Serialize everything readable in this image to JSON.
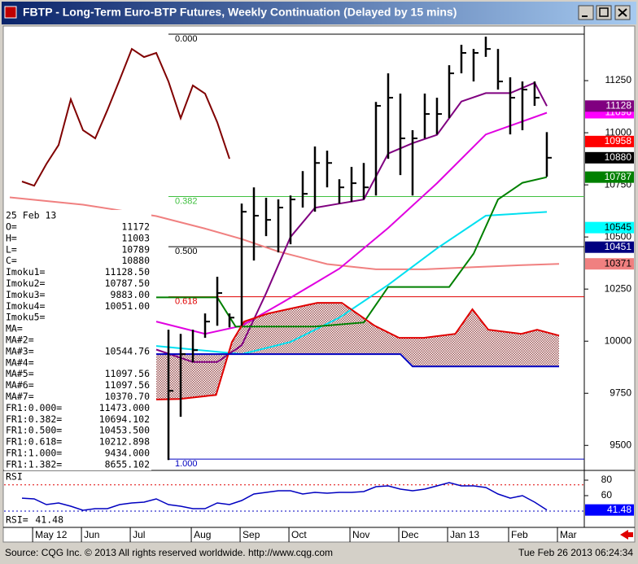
{
  "chart_data": {
    "type": "ohlc",
    "title": "FBTP - Long-Term Euro-BTP Futures, Weekly Continuation (Delayed by 15 mins)",
    "xlim": [
      -0.47,
      47.07
    ],
    "xticks": [
      {
        "value": 1.87,
        "label": "May 12"
      },
      {
        "value": 5.87,
        "label": "Jun"
      },
      {
        "value": 9.87,
        "label": "Jul"
      },
      {
        "value": 14.87,
        "label": "Aug"
      },
      {
        "value": 18.87,
        "label": "Sep"
      },
      {
        "value": 22.87,
        "label": "Oct"
      },
      {
        "value": 27.87,
        "label": "Nov"
      },
      {
        "value": 31.87,
        "label": "Dec"
      },
      {
        "value": 35.87,
        "label": "Jan 13"
      },
      {
        "value": 40.87,
        "label": "Feb"
      },
      {
        "value": 44.87,
        "label": "Mar"
      }
    ],
    "ylim": [
      9380,
      11508
    ],
    "yticks": [
      9500,
      9750,
      10000,
      10250,
      10500,
      10750,
      11000,
      11250
    ],
    "bars": {
      "color": "#000000",
      "x": [
        13,
        14,
        15,
        16,
        17,
        18,
        19,
        20,
        21,
        22,
        23,
        24,
        25,
        26,
        27,
        28,
        29,
        30,
        31,
        32,
        33,
        34,
        35,
        36,
        37,
        38,
        39,
        40,
        41,
        42,
        43,
        44
      ],
      "high": [
        10055,
        10035,
        10055,
        10133,
        10309,
        10133,
        10660,
        10738,
        10688,
        10680,
        10699,
        10816,
        10934,
        10914,
        10777,
        10836,
        10855,
        11148,
        11285,
        11188,
        11012,
        11188,
        11168,
        11324,
        11422,
        11402,
        11461,
        11402,
        11266,
        11246,
        11246,
        11003
      ],
      "low": [
        9430,
        9637,
        9899,
        10016,
        10074,
        10066,
        10074,
        10387,
        10504,
        10426,
        10465,
        10641,
        10621,
        10738,
        10660,
        10668,
        10680,
        10699,
        10875,
        10797,
        10699,
        10973,
        10992,
        11070,
        11285,
        11246,
        11364,
        11207,
        10992,
        11012,
        11129,
        10789
      ],
      "close": [
        9762,
        9938,
        9957,
        10094,
        10231,
        10113,
        10621,
        10602,
        10582,
        10641,
        10680,
        10707,
        10855,
        10855,
        10738,
        10758,
        10738,
        11129,
        11168,
        10973,
        10973,
        11090,
        11090,
        11285,
        11383,
        11383,
        11402,
        11246,
        11168,
        11207,
        11168,
        10880
      ]
    },
    "series": [
      {
        "color": "#800000",
        "x": [
          1,
          2,
          3,
          4,
          5,
          6,
          7,
          8,
          9,
          10,
          11,
          12,
          13,
          14,
          15,
          16,
          17,
          18
        ],
        "values": [
          10766,
          10746,
          10850,
          10941,
          11160,
          11012,
          10973,
          11109,
          11254,
          11402,
          11363,
          11383,
          11246,
          11070,
          11227,
          11188,
          11050,
          10875
        ]
      },
      {
        "color": "#f08080",
        "x": [
          0,
          6,
          12,
          16,
          19,
          22,
          26,
          30,
          34,
          38,
          42,
          45
        ],
        "values": [
          10690,
          10655,
          10600,
          10540,
          10490,
          10430,
          10370,
          10345,
          10345,
          10355,
          10365,
          10371
        ]
      },
      {
        "color": "#e000e0",
        "x": [
          12,
          16,
          19,
          22.5,
          27,
          31,
          35,
          39,
          44
        ],
        "values": [
          10094,
          10035,
          10074,
          10191,
          10348,
          10543,
          10758,
          10992,
          11096
        ]
      },
      {
        "color": "#00e0f0",
        "x": [
          12,
          19,
          23,
          27,
          31,
          35,
          39,
          44
        ],
        "values": [
          9977,
          9938,
          9996,
          10113,
          10270,
          10445,
          10602,
          10620
        ]
      },
      {
        "color": "#800080",
        "x": [
          12,
          15,
          17,
          19,
          21,
          23,
          25,
          27,
          29,
          31,
          33,
          35,
          37,
          39,
          41,
          43,
          44
        ],
        "values": [
          9960,
          9900,
          9900,
          9980,
          10230,
          10500,
          10640,
          10660,
          10680,
          10900,
          10950,
          10990,
          11150,
          11190,
          11190,
          11240,
          11128
        ]
      },
      {
        "color": "#008000",
        "x": [
          12,
          17,
          18.5,
          25,
          29,
          31,
          36,
          38,
          40,
          42,
          44
        ],
        "values": [
          10210,
          10210,
          10070,
          10070,
          10090,
          10260,
          10260,
          10420,
          10680,
          10760,
          10787
        ]
      },
      {
        "color": "#e00000",
        "cloud": "a",
        "x": [
          12,
          13.9,
          16.9,
          18.2,
          19.2,
          21.2,
          25.2,
          27.2,
          29.9,
          31.9,
          33.9,
          36.5,
          37.9,
          39.2,
          41.9,
          43.2,
          45
        ],
        "values": [
          9720,
          9723,
          9742,
          9996,
          10094,
          10133,
          10184,
          10184,
          10074,
          10016,
          10016,
          10035,
          10153,
          10055,
          10035,
          10055,
          10027
        ]
      },
      {
        "color": "#0000c0",
        "cloud": "b",
        "x": [
          12,
          32,
          33,
          45
        ],
        "values": [
          9938,
          9938,
          9879,
          9879
        ]
      }
    ],
    "fib_levels": [
      {
        "label": "0.000",
        "value": 11473,
        "color": "#000000"
      },
      {
        "label": "0.382",
        "value": 10694.102,
        "color": "#40c040"
      },
      {
        "label": "0.500",
        "value": 10453.5,
        "color": "#000000"
      },
      {
        "label": "0.618",
        "value": 10212.898,
        "color": "#e00000"
      },
      {
        "label": "1.000",
        "value": 9434,
        "color": "#0000c0"
      }
    ],
    "price_markers": [
      {
        "value": 11096,
        "color": "#ff00ff",
        "text_color": "#ffffff"
      },
      {
        "value": 11128,
        "color": "#800080",
        "text_color": "#ffffff"
      },
      {
        "value": 10958,
        "color": "#ff0000",
        "text_color": "#ffffff"
      },
      {
        "value": 10880,
        "color": "#000000",
        "text_color": "#ffffff"
      },
      {
        "value": 10787,
        "color": "#008000",
        "text_color": "#ffffff"
      },
      {
        "value": 10545,
        "color": "#00ffff",
        "text_color": "#000000"
      },
      {
        "value": 10451,
        "color": "#000080",
        "text_color": "#ffffff"
      },
      {
        "value": 10371,
        "color": "#f08080",
        "text_color": "#000000"
      }
    ],
    "info_panel": {
      "date": "25 Feb 13",
      "rows": [
        [
          "O=",
          "11172"
        ],
        [
          "H=",
          "11003"
        ],
        [
          "L=",
          "10789"
        ],
        [
          "C=",
          "10880"
        ],
        [
          "Imoku1=",
          "11128.50"
        ],
        [
          "Imoku2=",
          "10787.50"
        ],
        [
          "Imoku3=",
          "9883.00"
        ],
        [
          "Imoku4=",
          "10051.00"
        ],
        [
          "Imoku5="
        ],
        [
          "MA="
        ],
        [
          "MA#2="
        ],
        [
          "MA#3=",
          "10544.76"
        ],
        [
          "MA#4="
        ],
        [
          "MA#5=",
          "11097.56"
        ],
        [
          "MA#6=",
          "11097.56"
        ],
        [
          "MA#7=",
          "10370.70"
        ],
        [
          "FR1:0.000=",
          "11473.000"
        ],
        [
          "FR1:0.382=",
          "10694.102"
        ],
        [
          "FR1:0.500=",
          "10453.500"
        ],
        [
          "FR1:0.618=",
          "10212.898"
        ],
        [
          "FR1:1.000=",
          "9434.000"
        ],
        [
          "FR1:1.382=",
          "8655.102"
        ]
      ]
    },
    "rsi": {
      "title": "RSI",
      "readout_label": "RSI=",
      "readout": "41.48",
      "ylim": [
        19,
        90.5
      ],
      "yticks": [
        80,
        60
      ],
      "ref_lines": [
        {
          "value": 74,
          "color": "#e00000"
        },
        {
          "value": 40,
          "color": "#0000c0"
        }
      ],
      "color": "#0000c0",
      "x": [
        1,
        2,
        3,
        4,
        5,
        6,
        7,
        8,
        9,
        10,
        11,
        12,
        13,
        14,
        15,
        16,
        17,
        18,
        19,
        20,
        21,
        22,
        23,
        24,
        25,
        26,
        27,
        28,
        29,
        30,
        31,
        32,
        33,
        34,
        35,
        36,
        37,
        38,
        39,
        40,
        41,
        42,
        43,
        44
      ],
      "values": [
        56.8,
        55.8,
        48.4,
        50.5,
        46.3,
        41.1,
        43.2,
        43.2,
        48.4,
        50.5,
        51.6,
        55.8,
        48.4,
        46.3,
        43.2,
        43.2,
        50.5,
        48.4,
        53.7,
        62.1,
        64.2,
        66.3,
        66.3,
        62.1,
        64.2,
        63.2,
        64.2,
        64.2,
        65.3,
        71.6,
        72.6,
        68.4,
        66.3,
        68.4,
        72.6,
        76.8,
        72.6,
        72.6,
        70.5,
        62.1,
        56.8,
        60,
        51.6,
        41.48
      ],
      "marker": {
        "value": 41.48,
        "color": "#0000ff",
        "text_color": "#ffffff"
      }
    },
    "source": "Source: CQG Inc. © 2013 All rights reserved worldwide. http://www.cqg.com",
    "timestamp": "Tue Feb 26 2013 06:24:34"
  }
}
